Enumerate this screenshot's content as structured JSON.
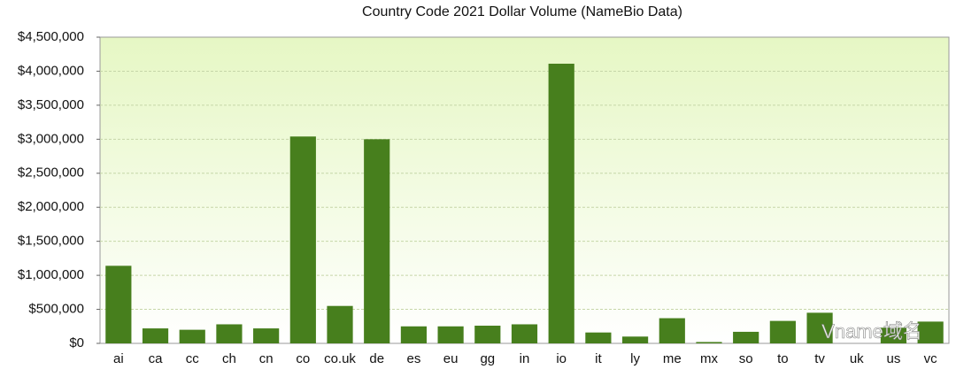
{
  "chart_data": {
    "type": "bar",
    "title": "Country Code 2021 Dollar Volume (NameBio Data)",
    "categories": [
      "ai",
      "ca",
      "cc",
      "ch",
      "cn",
      "co",
      "co.uk",
      "de",
      "es",
      "eu",
      "gg",
      "in",
      "io",
      "it",
      "ly",
      "me",
      "mx",
      "so",
      "to",
      "tv",
      "uk",
      "us",
      "vc"
    ],
    "values": [
      1140000,
      220000,
      200000,
      280000,
      220000,
      3040000,
      550000,
      3000000,
      250000,
      250000,
      260000,
      280000,
      4110000,
      160000,
      100000,
      370000,
      20000,
      170000,
      330000,
      450000,
      0,
      230000,
      320000
    ],
    "color": "#477f1d",
    "ylim": [
      0,
      4500000
    ],
    "yticks": [
      {
        "value": 0,
        "label": "$0"
      },
      {
        "value": 500000,
        "label": "$500,000"
      },
      {
        "value": 1000000,
        "label": "$1,000,000"
      },
      {
        "value": 1500000,
        "label": "$1,500,000"
      },
      {
        "value": 2000000,
        "label": "$2,000,000"
      },
      {
        "value": 2500000,
        "label": "$2,500,000"
      },
      {
        "value": 3000000,
        "label": "$3,000,000"
      },
      {
        "value": 3500000,
        "label": "$3,500,000"
      },
      {
        "value": 4000000,
        "label": "$4,000,000"
      },
      {
        "value": 4500000,
        "label": "$4,500,000"
      }
    ],
    "grid": true,
    "watermark": "Vname域名"
  }
}
